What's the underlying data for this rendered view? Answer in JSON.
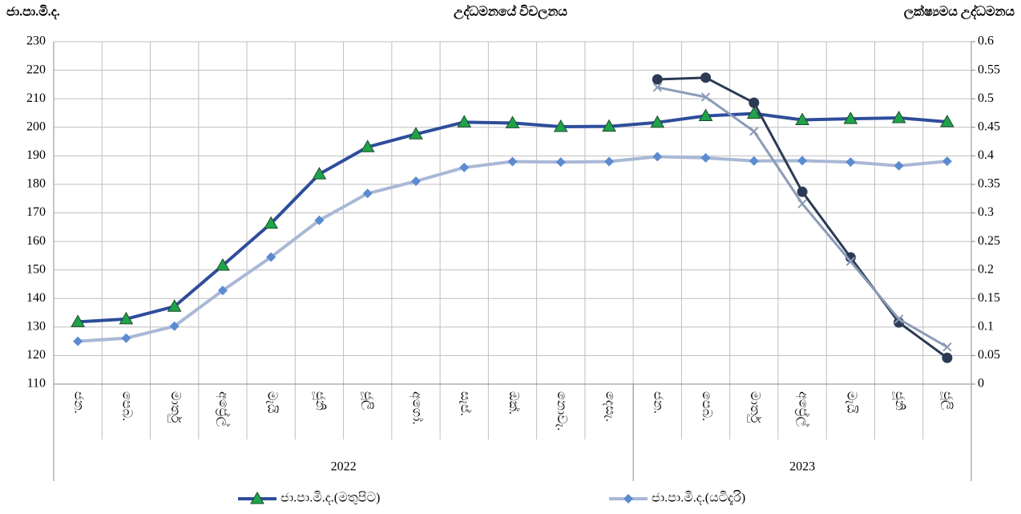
{
  "chart_data": {
    "type": "line",
    "title": "උද්ධමනයේ විචලනය",
    "y_label": "ජා.පා.මි.ද.",
    "y2_label": "ලක්ෂ්‍යමය උද්ධමනය",
    "categories": [
      "ජන.",
      "පෙබ.",
      "මාර්තු",
      "අප්‍රේල්",
      "මැයි",
      "ජූනි",
      "ජූලි",
      "අගෝ.",
      "සැප්.",
      "ඔක්.",
      "නොවැ.",
      "දෙසැ.",
      "ජන.",
      "පෙබ.",
      "මාර්තු",
      "අප්‍රේල්",
      "මැයි",
      "ජූනි",
      "ජූලි"
    ],
    "groups": [
      {
        "label": "2022",
        "count": 12
      },
      {
        "label": "2023",
        "count": 7
      }
    ],
    "series": [
      {
        "name": "ජා.පා.මි.ද.(මතුපිට)",
        "color": "#2E4D9B",
        "marker": "triangle",
        "marker_color": "#1FA34A",
        "values": [
          131.8,
          132.8,
          137.2,
          151.6,
          166.3,
          183.6,
          193.1,
          197.6,
          201.8,
          201.5,
          200.2,
          200.3,
          201.7,
          204.0,
          204.8,
          202.6,
          203.0,
          203.3,
          201.9
        ]
      },
      {
        "name": "ජා.පා.මි.ද.(යටිදැරි)",
        "color": "#A9B8D6",
        "marker": "diamond",
        "marker_color": "#5B8BD0",
        "values": [
          125.0,
          126.1,
          130.3,
          142.8,
          154.5,
          167.4,
          176.8,
          181.1,
          185.9,
          188.0,
          187.8,
          188.0,
          189.7,
          189.3,
          188.2,
          188.3,
          187.8,
          186.5,
          188.1
        ]
      },
      {
        "color": "#2C3A55",
        "marker": "circle",
        "marker_color": "#2C3A55",
        "axis": "y2",
        "values": [
          null,
          null,
          null,
          null,
          null,
          null,
          null,
          null,
          null,
          null,
          null,
          null,
          0.534,
          0.537,
          0.493,
          0.337,
          0.222,
          0.108,
          0.046
        ]
      },
      {
        "color": "#8C9BB6",
        "marker": "cross",
        "marker_color": "#8C9BB6",
        "axis": "y2",
        "values": [
          null,
          null,
          null,
          null,
          null,
          null,
          null,
          null,
          null,
          null,
          null,
          null,
          0.52,
          0.503,
          0.443,
          0.316,
          0.215,
          0.114,
          0.065
        ]
      }
    ],
    "ylim": [
      110,
      230
    ],
    "yticks": [
      110,
      120,
      130,
      140,
      150,
      160,
      170,
      180,
      190,
      200,
      210,
      220,
      230
    ],
    "y2lim": [
      0,
      0.6
    ],
    "y2ticks": [
      0,
      0.05,
      0.1,
      0.15,
      0.2,
      0.25,
      0.3,
      0.35,
      0.4,
      0.45,
      0.5,
      0.55,
      0.6
    ],
    "grid": true,
    "legend": "bottom"
  }
}
